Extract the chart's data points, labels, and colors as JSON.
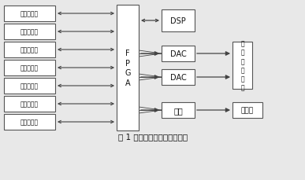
{
  "title": "图 1 温控电路的整体结构框图",
  "background": "#e8e8e8",
  "sensors": [
    "温度传感器",
    "温度传感器",
    "温度传感器",
    "温度传感器",
    "温度传感器",
    "温度传感器",
    "温度传感器"
  ],
  "fpga_label": "F\nP\nG\nA",
  "dsp_label": "DSP",
  "dac1_label": "DAC",
  "dac2_label": "DAC",
  "serial_label": "串口",
  "back_label": "后\n端\n控\n制\n电\n路",
  "pc_label": "上位机",
  "box_fc": "#ffffff",
  "box_ec": "#555555",
  "text_color": "#111111",
  "arrow_color": "#444444",
  "title_fontsize": 7.5
}
